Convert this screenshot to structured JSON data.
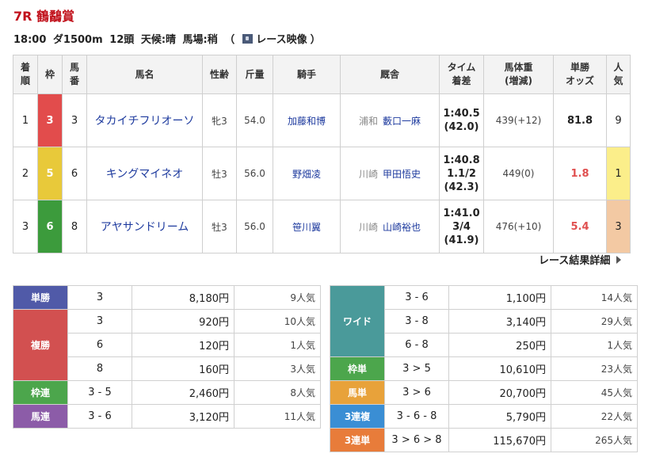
{
  "race": {
    "title": "7R 鶴鷸賞",
    "start_time": "18:00",
    "course": "ダ1500m",
    "runners": "12頭",
    "weather": "天候:晴",
    "track": "馬場:稍",
    "video_open": "（",
    "video_label": "レース映像",
    "video_close": "）"
  },
  "results": {
    "headers": {
      "chakujun": "着順",
      "waku": "枠",
      "umaban": "馬番",
      "horse": "馬名",
      "sexage": "性齢",
      "kinryo": "斤量",
      "jockey": "騎手",
      "trainer": "厩舎",
      "time": "タイム着差",
      "weight": "馬体重(増減)",
      "odds": "単勝オッズ",
      "pop": "人気"
    },
    "rows": [
      {
        "rank": "1",
        "waku": "3",
        "umaban": "3",
        "horse": "タカイチフリオーソ",
        "sexage": "牝3",
        "kinryo": "54.0",
        "jockey": "加藤和博",
        "area": "浦和",
        "trainer": "藪口一麻",
        "time": "1:40.5",
        "margin": "",
        "last3f": "(42.0)",
        "weight": "439(+12)",
        "odds": "81.8",
        "pop": "9"
      },
      {
        "rank": "2",
        "waku": "5",
        "umaban": "6",
        "horse": "キングマイネオ",
        "sexage": "牡3",
        "kinryo": "56.0",
        "jockey": "野畑凌",
        "area": "川崎",
        "trainer": "甲田悟史",
        "time": "1:40.8",
        "margin": "1.1/2",
        "last3f": "(42.3)",
        "weight": "449(0)",
        "odds": "1.8",
        "pop": "1"
      },
      {
        "rank": "3",
        "waku": "6",
        "umaban": "8",
        "horse": "アヤサンドリーム",
        "sexage": "牡3",
        "kinryo": "56.0",
        "jockey": "笹川翼",
        "area": "川崎",
        "trainer": "山崎裕也",
        "time": "1:41.0",
        "margin": "3/4",
        "last3f": "(41.9)",
        "weight": "476(+10)",
        "odds": "5.4",
        "pop": "3"
      }
    ]
  },
  "detail_link": "レース結果詳細",
  "payout_left": [
    {
      "label": "単勝",
      "rows": [
        {
          "combo": "3",
          "amount": "8,180円",
          "pop": "9人気"
        }
      ]
    },
    {
      "label": "複勝",
      "rows": [
        {
          "combo": "3",
          "amount": "920円",
          "pop": "10人気"
        },
        {
          "combo": "6",
          "amount": "120円",
          "pop": "1人気"
        },
        {
          "combo": "8",
          "amount": "160円",
          "pop": "3人気"
        }
      ]
    },
    {
      "label": "枠連",
      "rows": [
        {
          "combo": "3 - 5",
          "amount": "2,460円",
          "pop": "8人気"
        }
      ]
    },
    {
      "label": "馬連",
      "rows": [
        {
          "combo": "3 - 6",
          "amount": "3,120円",
          "pop": "11人気"
        }
      ]
    }
  ],
  "payout_right": [
    {
      "label": "ワイド",
      "rows": [
        {
          "combo": "3 - 6",
          "amount": "1,100円",
          "pop": "14人気"
        },
        {
          "combo": "3 - 8",
          "amount": "3,140円",
          "pop": "29人気"
        },
        {
          "combo": "6 - 8",
          "amount": "250円",
          "pop": "1人気"
        }
      ]
    },
    {
      "label": "枠単",
      "rows": [
        {
          "combo": "3 > 5",
          "amount": "10,610円",
          "pop": "23人気"
        }
      ]
    },
    {
      "label": "馬単",
      "rows": [
        {
          "combo": "3 > 6",
          "amount": "20,700円",
          "pop": "45人気"
        }
      ]
    },
    {
      "label": "3連複",
      "rows": [
        {
          "combo": "3 - 6 - 8",
          "amount": "5,790円",
          "pop": "22人気"
        }
      ]
    },
    {
      "label": "3連単",
      "rows": [
        {
          "combo": "3 > 6 > 8",
          "amount": "115,670円",
          "pop": "265人気"
        }
      ]
    }
  ],
  "colors": {
    "title_red": "#c1121c",
    "waku3": "#e24c4c",
    "waku5": "#e8c93a",
    "waku6": "#3c9b3c",
    "tansho": "#505aa8",
    "fukusho": "#d25050",
    "wakuren": "#4ca64c",
    "umaren": "#8c5ca8",
    "wide": "#4a9a9a",
    "wakutan": "#4ca64c",
    "umatan": "#e8a23a",
    "sanrenpuku": "#3a8ed4",
    "sanrentan": "#e87c3a"
  }
}
